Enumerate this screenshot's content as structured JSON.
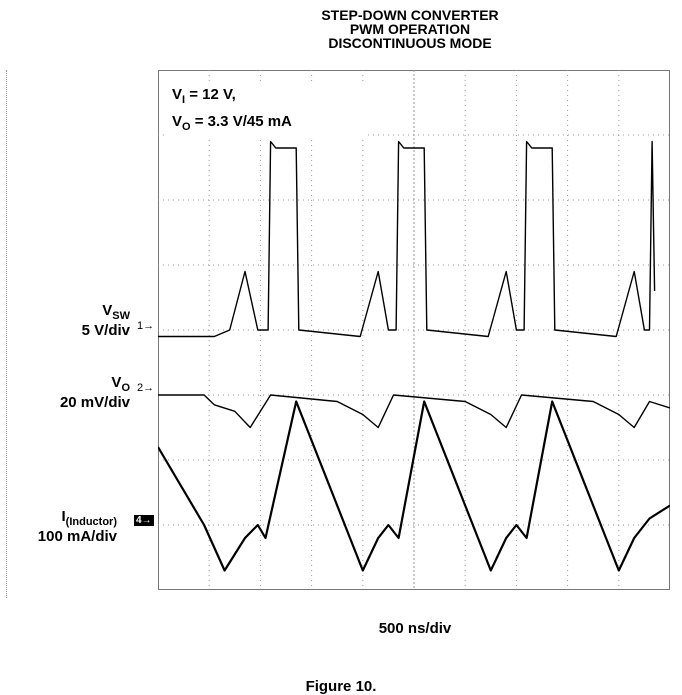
{
  "title_lines": [
    "STEP-DOWN CONVERTER",
    "PWM OPERATION",
    "DISCONTINUOUS MODE"
  ],
  "conditions": {
    "line1_main": "V",
    "line1_sub": "I",
    "line1_rest": " = 12 V,",
    "line2_main": "V",
    "line2_sub": "O",
    "line2_rest": " = 3.3 V/45 mA"
  },
  "channels": [
    {
      "name_main": "V",
      "name_sub": "SW",
      "scale": "5 V/div",
      "marker": "1→"
    },
    {
      "name_main": "V",
      "name_sub": "O",
      "scale": "20 mV/div",
      "marker": "2→"
    },
    {
      "name_main": "I",
      "name_sub": "(Inductor)",
      "scale": "100 mA/div",
      "marker": "4→"
    }
  ],
  "xlabel": "500 ns/div",
  "caption": "Figure 10.",
  "chart_data": {
    "type": "line",
    "grid": true,
    "x_divisions": 10,
    "y_divisions": 8,
    "time_per_div_ns": 500,
    "series": [
      {
        "name": "VSW",
        "unit": "V",
        "scale_per_div": 5,
        "points": [
          [
            0,
            -0.1
          ],
          [
            1.1,
            -0.1
          ],
          [
            1.4,
            0.0
          ],
          [
            1.7,
            0.9
          ],
          [
            1.95,
            0.0
          ],
          [
            2.05,
            0.0
          ],
          [
            2.15,
            0.0
          ],
          [
            2.2,
            2.9
          ],
          [
            2.3,
            2.8
          ],
          [
            2.7,
            2.8
          ],
          [
            2.75,
            0.0
          ],
          [
            3.95,
            -0.1
          ],
          [
            4.3,
            0.9
          ],
          [
            4.5,
            0.0
          ],
          [
            4.65,
            0.0
          ],
          [
            4.7,
            2.9
          ],
          [
            4.8,
            2.8
          ],
          [
            5.2,
            2.8
          ],
          [
            5.25,
            0.0
          ],
          [
            6.45,
            -0.1
          ],
          [
            6.8,
            0.9
          ],
          [
            7.0,
            0.0
          ],
          [
            7.15,
            0.0
          ],
          [
            7.2,
            2.9
          ],
          [
            7.3,
            2.8
          ],
          [
            7.7,
            2.8
          ],
          [
            7.75,
            0.0
          ],
          [
            8.95,
            -0.1
          ],
          [
            9.3,
            0.9
          ],
          [
            9.5,
            0.0
          ],
          [
            9.6,
            0.0
          ],
          [
            9.65,
            2.9
          ],
          [
            9.7,
            0.6
          ]
        ]
      },
      {
        "name": "VO",
        "unit": "mV",
        "scale_per_div": 20,
        "points": [
          [
            0,
            0.0
          ],
          [
            0.9,
            0.0
          ],
          [
            1.1,
            -0.15
          ],
          [
            1.5,
            -0.25
          ],
          [
            1.8,
            -0.5
          ],
          [
            2.2,
            0.0
          ],
          [
            3.5,
            -0.1
          ],
          [
            4.0,
            -0.3
          ],
          [
            4.3,
            -0.5
          ],
          [
            4.6,
            0.0
          ],
          [
            6.0,
            -0.1
          ],
          [
            6.5,
            -0.3
          ],
          [
            6.8,
            -0.5
          ],
          [
            7.1,
            0.0
          ],
          [
            8.5,
            -0.1
          ],
          [
            9.0,
            -0.3
          ],
          [
            9.3,
            -0.5
          ],
          [
            9.6,
            -0.1
          ],
          [
            10.0,
            -0.2
          ]
        ]
      },
      {
        "name": "IInductor",
        "unit": "mA",
        "scale_per_div": 100,
        "points": [
          [
            0,
            1.2
          ],
          [
            0.9,
            0.0
          ],
          [
            1.3,
            -0.7
          ],
          [
            1.7,
            -0.2
          ],
          [
            1.95,
            0.0
          ],
          [
            2.1,
            -0.2
          ],
          [
            2.7,
            1.9
          ],
          [
            4.0,
            -0.7
          ],
          [
            4.3,
            -0.2
          ],
          [
            4.5,
            0.0
          ],
          [
            4.7,
            -0.2
          ],
          [
            5.2,
            1.9
          ],
          [
            6.5,
            -0.7
          ],
          [
            6.8,
            -0.2
          ],
          [
            7.0,
            0.0
          ],
          [
            7.2,
            -0.2
          ],
          [
            7.7,
            1.9
          ],
          [
            9.0,
            -0.7
          ],
          [
            9.3,
            -0.2
          ],
          [
            9.6,
            0.1
          ],
          [
            10.0,
            0.3
          ]
        ]
      }
    ]
  }
}
